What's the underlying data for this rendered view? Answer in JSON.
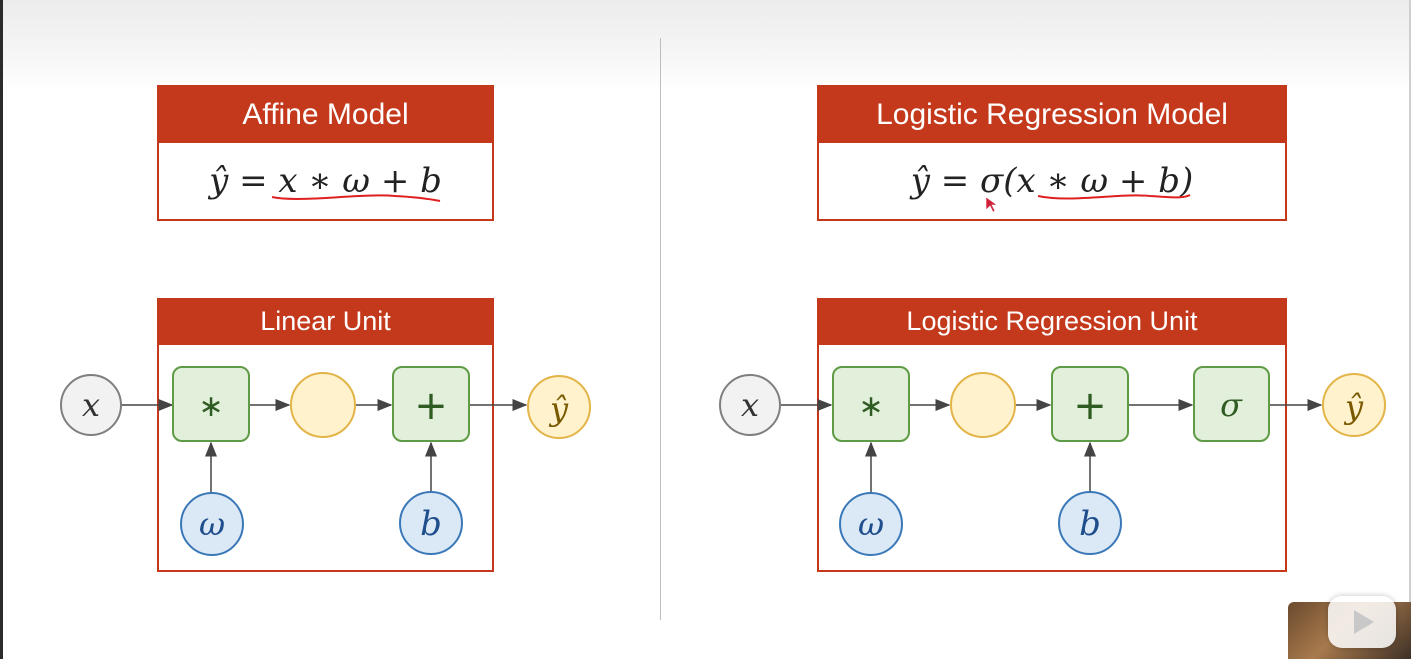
{
  "affine": {
    "title": "Affine Model",
    "equation": "ŷ = x ∗ ω + b",
    "unit_title": "Linear Unit",
    "nodes": {
      "input": "x",
      "mul": "∗",
      "add": "+",
      "output": "ŷ",
      "weight": "ω",
      "bias": "b"
    }
  },
  "logistic": {
    "title": "Logistic Regression Model",
    "equation": "ŷ = σ(x ∗ ω + b)",
    "unit_title": "Logistic Regression Unit",
    "nodes": {
      "input": "x",
      "mul": "∗",
      "add": "+",
      "sigma": "σ",
      "output": "ŷ",
      "weight": "ω",
      "bias": "b"
    }
  },
  "colors": {
    "accent": "#c4391c",
    "op_fill": "#e2efda",
    "op_stroke": "#5f9b45",
    "param_fill": "#dbe8f6",
    "param_stroke": "#3a78b8",
    "mid_fill": "#fff2cc",
    "mid_stroke": "#e3b448",
    "input_fill": "#f2f2f2",
    "input_stroke": "#7f7f7f",
    "annotation": "#e02020"
  }
}
